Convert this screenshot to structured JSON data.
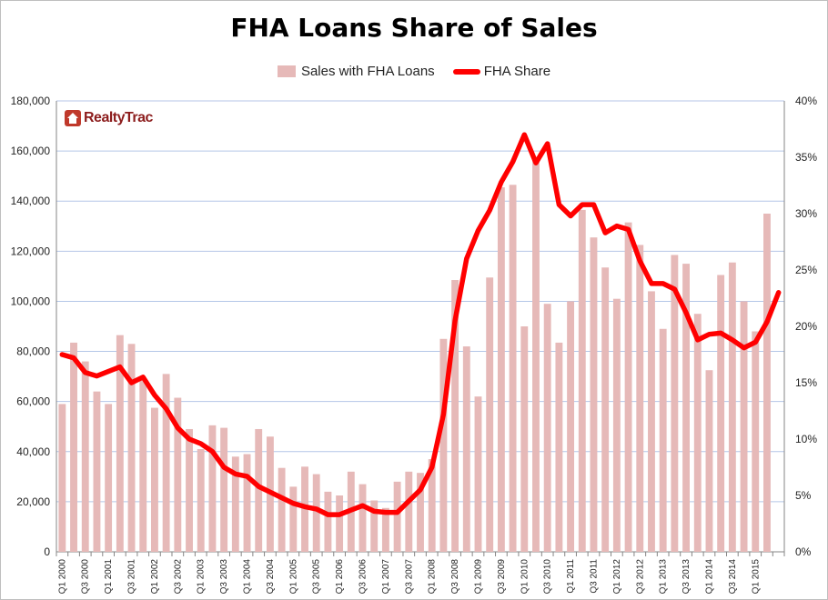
{
  "logo": {
    "text": "RealtyTrac"
  },
  "chart_data": {
    "type": "bar",
    "title": "FHA Loans Share of Sales",
    "xlabel": "",
    "ylabel": "",
    "ylim": [
      0,
      180000
    ],
    "y2lim": [
      0,
      40
    ],
    "legend_position": "top",
    "grid": true,
    "colors": {
      "bars": "#e6b9b8",
      "line": "#ff0000",
      "grid": "#b4c6e7"
    },
    "y_ticks": [
      "0",
      "20,000",
      "40,000",
      "60,000",
      "80,000",
      "100,000",
      "120,000",
      "140,000",
      "160,000",
      "180,000"
    ],
    "y2_ticks": [
      "0%",
      "5%",
      "10%",
      "15%",
      "20%",
      "25%",
      "30%",
      "35%",
      "40%"
    ],
    "categories": [
      "Q1 2000",
      "Q2 2000",
      "Q3 2000",
      "Q4 2000",
      "Q1 2001",
      "Q2 2001",
      "Q3 2001",
      "Q4 2001",
      "Q1 2002",
      "Q2 2002",
      "Q3 2002",
      "Q4 2002",
      "Q1 2003",
      "Q2 2003",
      "Q3 2003",
      "Q4 2003",
      "Q1 2004",
      "Q2 2004",
      "Q3 2004",
      "Q4 2004",
      "Q1 2005",
      "Q2 2005",
      "Q3 2005",
      "Q4 2005",
      "Q1 2006",
      "Q2 2006",
      "Q3 2006",
      "Q4 2006",
      "Q1 2007",
      "Q2 2007",
      "Q3 2007",
      "Q4 2007",
      "Q1 2008",
      "Q2 2008",
      "Q3 2008",
      "Q4 2008",
      "Q1 2009",
      "Q2 2009",
      "Q3 2009",
      "Q4 2009",
      "Q1 2010",
      "Q2 2010",
      "Q3 2010",
      "Q4 2010",
      "Q1 2011",
      "Q2 2011",
      "Q3 2011",
      "Q4 2011",
      "Q1 2012",
      "Q2 2012",
      "Q3 2012",
      "Q4 2012",
      "Q1 2013",
      "Q2 2013",
      "Q3 2013",
      "Q4 2013",
      "Q1 2014",
      "Q2 2014",
      "Q3 2014",
      "Q4 2014",
      "Q1 2015",
      "Q2 2015",
      "Q3 2015"
    ],
    "x_tick_labels": [
      "Q1 2000",
      "",
      "Q3 2000",
      "",
      "Q1 2001",
      "",
      "Q3 2001",
      "",
      "Q1 2002",
      "",
      "Q3 2002",
      "",
      "Q1 2003",
      "",
      "Q3 2003",
      "",
      "Q1 2004",
      "",
      "Q3 2004",
      "",
      "Q1 2005",
      "",
      "Q3 2005",
      "",
      "Q1 2006",
      "",
      "Q3 2006",
      "",
      "Q1 2007",
      "",
      "Q3 2007",
      "",
      "Q1 2008",
      "",
      "Q3 2008",
      "",
      "Q1 2009",
      "",
      "Q3 2009",
      "",
      "Q1 2010",
      "",
      "Q3 2010",
      "",
      "Q1 2011",
      "",
      "Q3 2011",
      "",
      "Q1 2012",
      "",
      "Q3 2012",
      "",
      "Q1 2013",
      "",
      "Q3 2013",
      "",
      "Q1 2014",
      "",
      "Q3 2014",
      "",
      "Q1 2015",
      "",
      ""
    ],
    "series": [
      {
        "name": "Sales with FHA Loans",
        "type": "bar",
        "axis": "left",
        "values": [
          59000,
          83500,
          76000,
          64000,
          59000,
          86500,
          83000,
          69000,
          57500,
          71000,
          61500,
          49000,
          41000,
          50500,
          49500,
          38000,
          39000,
          49000,
          46000,
          33500,
          26000,
          34000,
          31000,
          24000,
          22500,
          32000,
          27000,
          20500,
          17500,
          28000,
          32000,
          31500,
          37000,
          85000,
          108500,
          82000,
          62000,
          109500,
          145500,
          146500,
          90000,
          157500,
          99000,
          83500,
          100000,
          136500,
          125500,
          113500,
          101000,
          131500,
          122500,
          104000,
          89000,
          118500,
          115000,
          95000,
          72500,
          110500,
          115500,
          100000,
          88000,
          135000,
          0
        ]
      },
      {
        "name": "FHA Share",
        "type": "line",
        "axis": "right",
        "values": [
          17.5,
          17.2,
          15.9,
          15.6,
          16.0,
          16.4,
          15.0,
          15.5,
          13.9,
          12.7,
          11.0,
          10.0,
          9.6,
          8.9,
          7.5,
          6.9,
          6.7,
          5.8,
          5.3,
          4.8,
          4.3,
          4.0,
          3.8,
          3.3,
          3.3,
          3.7,
          4.1,
          3.6,
          3.5,
          3.5,
          4.5,
          5.5,
          7.5,
          12.2,
          20.5,
          26.0,
          28.5,
          30.3,
          32.8,
          34.6,
          37.0,
          34.5,
          36.2,
          30.8,
          29.8,
          30.8,
          30.8,
          28.3,
          28.9,
          28.6,
          25.8,
          23.8,
          23.8,
          23.3,
          21.2,
          18.8,
          19.3,
          19.4,
          18.8,
          18.1,
          18.6,
          20.4,
          23.0
        ]
      }
    ]
  }
}
